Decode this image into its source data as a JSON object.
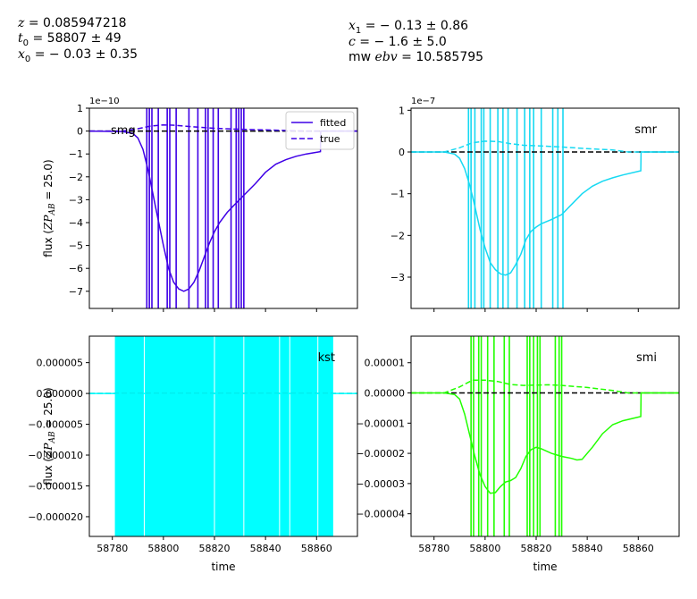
{
  "header": {
    "z": "0.085947218",
    "t0": "58807 ± 49",
    "x0": "− 0.03 ± 0.35",
    "x1": "− 0.13 ± 0.86",
    "c": "− 1.6 ± 5.0",
    "mwebv": "10.585795"
  },
  "chart_data": [
    {
      "type": "line",
      "band": "smg",
      "color": "#3f00e6",
      "xlim": [
        58771,
        58876
      ],
      "ylim": [
        -7.75,
        1.0
      ],
      "yticks": [
        1,
        0,
        -1,
        -2,
        -3,
        -4,
        -5,
        -6,
        -7
      ],
      "yticklabels": [
        "1",
        "0",
        "−1",
        "−2",
        "−3",
        "−4",
        "−5",
        "−6",
        "−7"
      ],
      "scale_label": "1e−10",
      "xticks": [
        58780,
        58800,
        58820,
        58840,
        58860
      ],
      "xtick_labels": false,
      "ylabel": "flux (ZP_AB = 25.0)",
      "xlabel": "",
      "legend": [
        "fitted",
        "true"
      ],
      "legend_loc": "top-right",
      "vlines": [
        58793.5,
        58794.5,
        58795.5,
        58798.0,
        58801.5,
        58802.5,
        58805.0,
        58810.0,
        58813.5,
        58816.5,
        58817.5,
        58819.5,
        58821.5,
        58826.5,
        58828.5,
        58829.5,
        58830.5,
        58831.5
      ],
      "series": [
        {
          "name": "fitted",
          "style": "solid",
          "x": [
            58771,
            58784,
            58788,
            58790,
            58792,
            58794,
            58796,
            58798,
            58800,
            58802,
            58804,
            58806,
            58808,
            58810,
            58812,
            58814,
            58816,
            58818,
            58820,
            58822,
            58825,
            58828,
            58832,
            58836,
            58840,
            58844,
            58848,
            58852,
            58856,
            58861.5,
            58861.6,
            58876
          ],
          "y": [
            0,
            -0.02,
            -0.1,
            -0.3,
            -0.8,
            -1.7,
            -2.8,
            -3.9,
            -5.0,
            -6.0,
            -6.6,
            -6.9,
            -7.0,
            -6.9,
            -6.6,
            -6.1,
            -5.5,
            -4.9,
            -4.4,
            -4.0,
            -3.55,
            -3.2,
            -2.75,
            -2.3,
            -1.8,
            -1.45,
            -1.25,
            -1.1,
            -1.0,
            -0.9,
            0.0,
            0.0
          ]
        },
        {
          "name": "true",
          "style": "dashed",
          "x": [
            58771,
            58784,
            58790,
            58795,
            58800,
            58805,
            58810,
            58815,
            58820,
            58830,
            58840,
            58850,
            58856,
            58876
          ],
          "y": [
            0,
            0.0,
            0.1,
            0.22,
            0.27,
            0.25,
            0.2,
            0.16,
            0.12,
            0.08,
            0.05,
            0.02,
            0.0,
            0.0
          ]
        }
      ]
    },
    {
      "type": "line",
      "band": "smr",
      "color": "#17d9f2",
      "xlim": [
        58771,
        58876
      ],
      "ylim": [
        -3.75,
        1.05
      ],
      "yticks": [
        1,
        0,
        -1,
        -2,
        -3
      ],
      "yticklabels": [
        "1",
        "0",
        "−1",
        "−2",
        "−3"
      ],
      "scale_label": "1e−7",
      "xticks": [
        58780,
        58800,
        58820,
        58840,
        58860
      ],
      "xtick_labels": false,
      "ylabel": "",
      "xlabel": "",
      "vlines": [
        58793.5,
        58794.5,
        58796.0,
        58798.5,
        58799.5,
        58802.0,
        58805.0,
        58807.0,
        58809.0,
        58812.5,
        58815.5,
        58817.5,
        58819.0,
        58822.0,
        58826.5,
        58828.5,
        58830.5
      ],
      "series": [
        {
          "name": "fitted",
          "style": "solid",
          "x": [
            58771,
            58784,
            58788,
            58790,
            58792,
            58794,
            58796,
            58798,
            58800,
            58802,
            58804,
            58806,
            58808,
            58810,
            58812,
            58814,
            58816,
            58818,
            58820,
            58822,
            58826,
            58830,
            58834,
            58838,
            58842,
            58846,
            58850,
            58854,
            58861,
            58861.1,
            58876
          ],
          "y": [
            0,
            0,
            -0.05,
            -0.15,
            -0.4,
            -0.8,
            -1.3,
            -1.85,
            -2.3,
            -2.65,
            -2.82,
            -2.92,
            -2.95,
            -2.9,
            -2.7,
            -2.45,
            -2.1,
            -1.9,
            -1.8,
            -1.72,
            -1.62,
            -1.5,
            -1.25,
            -1.0,
            -0.82,
            -0.7,
            -0.62,
            -0.55,
            -0.45,
            0.0,
            0.0
          ]
        },
        {
          "name": "true",
          "style": "dashed",
          "x": [
            58771,
            58784,
            58790,
            58795,
            58800,
            58805,
            58810,
            58815,
            58820,
            58830,
            58840,
            58850,
            58856,
            58876
          ],
          "y": [
            0,
            0.0,
            0.1,
            0.22,
            0.26,
            0.25,
            0.2,
            0.16,
            0.15,
            0.12,
            0.08,
            0.05,
            0.0,
            0.0
          ]
        }
      ]
    },
    {
      "type": "line",
      "band": "kst",
      "color": "#00ffff",
      "xlim": [
        58771,
        58876
      ],
      "ylim": [
        -2.32e-05,
        9.3e-06
      ],
      "yticks": [
        5e-06,
        0.0,
        -5e-06,
        -1e-05,
        -1.5e-05,
        -2e-05
      ],
      "yticklabels": [
        "0.000005",
        "0.000000",
        "−0.000005",
        "−0.000010",
        "−0.000015",
        "−0.000020"
      ],
      "xticks": [
        58780,
        58800,
        58820,
        58840,
        58860
      ],
      "xticklabels": [
        "58780",
        "58800",
        "58820",
        "58840",
        "58860"
      ],
      "ylabel": "flux (ZP_AB = 25.0)",
      "xlabel": "time",
      "band_fill": [
        58781,
        58866.5
      ],
      "vlines": [
        58792.5,
        58820.0,
        58831.5,
        58845.5,
        58849.5,
        58860.5
      ],
      "series": [
        {
          "name": "fitted",
          "style": "solid",
          "x": [
            58771,
            58876
          ],
          "y": [
            0,
            0
          ]
        },
        {
          "name": "true",
          "style": "dashed",
          "x": [
            58771,
            58876
          ],
          "y": [
            0,
            0
          ]
        }
      ]
    },
    {
      "type": "line",
      "band": "smi",
      "color": "#22ff00",
      "xlim": [
        58771,
        58876
      ],
      "ylim": [
        -4.75e-05,
        1.88e-05
      ],
      "yticks": [
        1e-05,
        0.0,
        -1e-05,
        -2e-05,
        -3e-05,
        -4e-05
      ],
      "yticklabels": [
        "0.00001",
        "0.00000",
        "−0.00001",
        "−0.00002",
        "−0.00003",
        "−0.00004"
      ],
      "xticks": [
        58780,
        58800,
        58820,
        58840,
        58860
      ],
      "xticklabels": [
        "58780",
        "58800",
        "58820",
        "58840",
        "58860"
      ],
      "ylabel": "",
      "xlabel": "time",
      "vlines": [
        58794.5,
        58795.5,
        58797.5,
        58798.5,
        58801.0,
        58803.5,
        58807.5,
        58809.5,
        58816.5,
        58817.5,
        58819.0,
        58820.5,
        58821.5,
        58827.5,
        58829.0,
        58830.0
      ],
      "series": [
        {
          "name": "fitted",
          "style": "solid",
          "x": [
            58771,
            58784,
            58788,
            58790,
            58792,
            58794,
            58796,
            58798,
            58800,
            58802,
            58804,
            58806,
            58808,
            58810,
            58812,
            58814,
            58816,
            58818,
            58820,
            58822,
            58826,
            58830,
            58834,
            58836,
            58838,
            58842,
            58846,
            58850,
            58854,
            58861,
            58861.1,
            58876
          ],
          "y": [
            0,
            0,
            -5e-07,
            -2e-06,
            -7e-06,
            -1.4e-05,
            -2.1e-05,
            -2.7e-05,
            -3.1e-05,
            -3.32e-05,
            -3.3e-05,
            -3.1e-05,
            -2.95e-05,
            -2.9e-05,
            -2.8e-05,
            -2.5e-05,
            -2.1e-05,
            -1.88e-05,
            -1.8e-05,
            -1.85e-05,
            -2e-05,
            -2.1e-05,
            -2.17e-05,
            -2.22e-05,
            -2.2e-05,
            -1.8e-05,
            -1.35e-05,
            -1.05e-05,
            -9.2e-06,
            -7.8e-06,
            0.0,
            0.0
          ]
        },
        {
          "name": "true",
          "style": "dashed",
          "x": [
            58771,
            58784,
            58790,
            58795,
            58800,
            58805,
            58810,
            58815,
            58820,
            58825,
            58830,
            58840,
            58850,
            58856,
            58876
          ],
          "y": [
            0,
            0.0,
            2e-06,
            4.2e-06,
            4.2e-06,
            3.8e-06,
            2.8e-06,
            2.5e-06,
            2.6e-06,
            2.7e-06,
            2.5e-06,
            1.8e-06,
            8e-07,
            0.0,
            0.0
          ]
        }
      ]
    }
  ]
}
